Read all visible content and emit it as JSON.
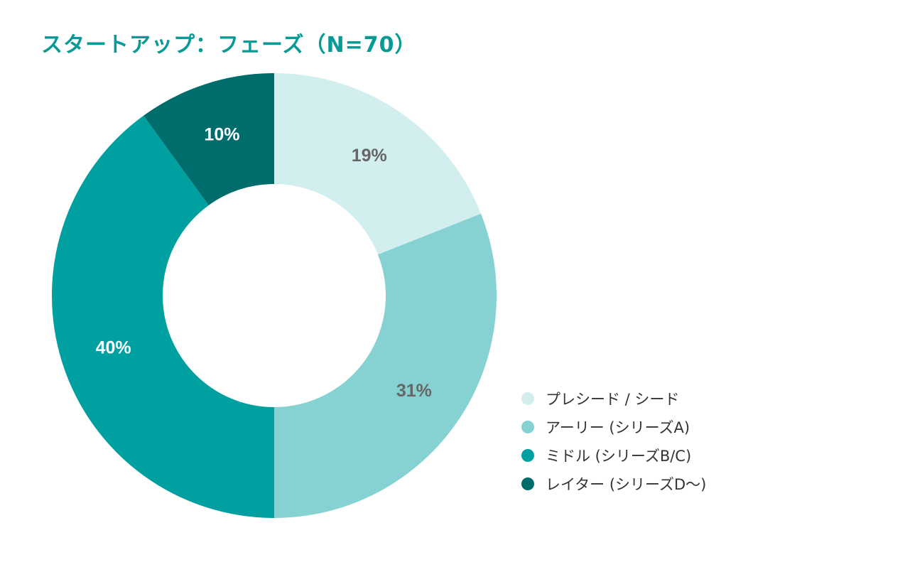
{
  "chart_data": {
    "type": "pie",
    "title": "スタートアップ：フェーズ（N=70）",
    "style": "donut",
    "legend_position": "bottom-right",
    "categories": [
      "プレシード / シード",
      "アーリー (シリーズA)",
      "ミドル (シリーズB/C)",
      "レイター (シリーズD〜)"
    ],
    "values": [
      19,
      31,
      40,
      10
    ],
    "value_labels": [
      "19%",
      "31%",
      "40%",
      "10%"
    ],
    "colors": [
      "#d3eeee",
      "#86d2d3",
      "#00a0a1",
      "#006d6d"
    ],
    "label_colors": [
      "#666666",
      "#666666",
      "#ffffff",
      "#ffffff"
    ],
    "title_color": "#0a9a96"
  }
}
